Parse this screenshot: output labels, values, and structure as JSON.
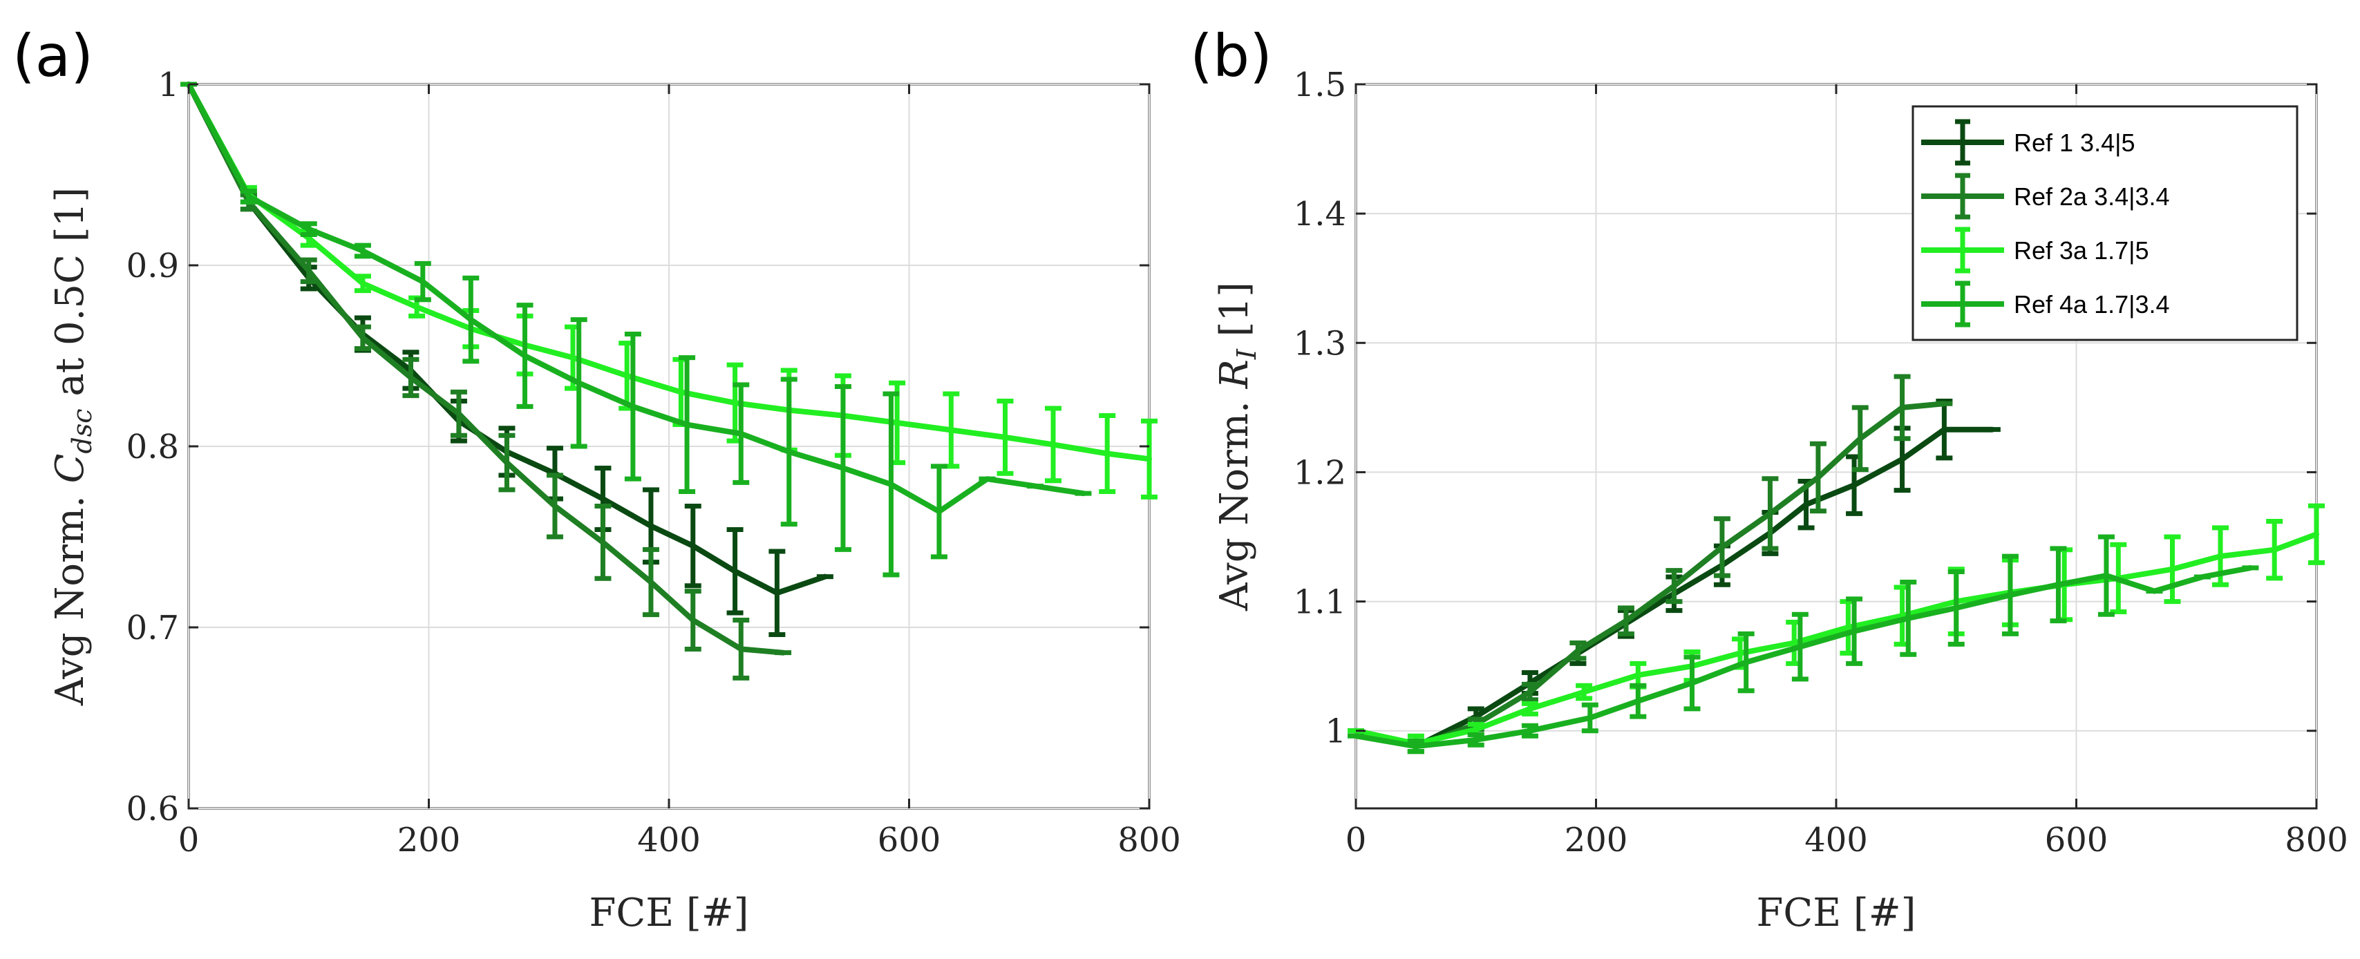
{
  "series_styles": [
    {
      "name": "Ref 1 3.4|5",
      "color": "#0a4a12"
    },
    {
      "name": "Ref 2a 3.4|3.4",
      "color": "#1f7f23"
    },
    {
      "name": "Ref 3a 1.7|5",
      "color": "#22ee22"
    },
    {
      "name": "Ref 4a 1.7|3.4",
      "color": "#19b020"
    }
  ],
  "chart_data": [
    {
      "type": "line",
      "panel_label": "(a)",
      "xlabel": "FCE [#]",
      "ylabel_prefix": "Avg Norm. ",
      "ylabel_var": "C",
      "ylabel_sub": "dsc",
      "ylabel_suffix": " at 0.5C [1]",
      "xlim": [
        0,
        800
      ],
      "ylim": [
        0.6,
        1.0
      ],
      "xticks": [
        0,
        200,
        400,
        600,
        800
      ],
      "yticks": [
        0.6,
        0.7,
        0.8,
        0.9,
        1.0
      ],
      "ytick_labels": [
        "0.6",
        "0.7",
        "0.8",
        "0.9",
        "1"
      ],
      "grid": true,
      "series": [
        {
          "name": "Ref 1 3.4|5",
          "x": [
            0,
            50,
            100,
            145,
            185,
            225,
            265,
            305,
            345,
            385,
            420,
            455,
            490,
            530
          ],
          "y": [
            1.0,
            0.935,
            0.893,
            0.862,
            0.842,
            0.814,
            0.797,
            0.785,
            0.771,
            0.756,
            0.745,
            0.731,
            0.719,
            0.728
          ],
          "err": [
            0,
            0.004,
            0.006,
            0.009,
            0.01,
            0.011,
            0.013,
            0.014,
            0.017,
            0.02,
            0.022,
            0.023,
            0.023,
            0
          ]
        },
        {
          "name": "Ref 2a 3.4|3.4",
          "x": [
            0,
            50,
            100,
            145,
            185,
            225,
            265,
            305,
            345,
            385,
            420,
            460,
            495
          ],
          "y": [
            1.0,
            0.935,
            0.897,
            0.86,
            0.838,
            0.818,
            0.791,
            0.767,
            0.747,
            0.725,
            0.704,
            0.688,
            0.686
          ],
          "err": [
            0,
            0.004,
            0.006,
            0.006,
            0.01,
            0.012,
            0.015,
            0.017,
            0.02,
            0.018,
            0.016,
            0.016,
            0
          ]
        },
        {
          "name": "Ref 3a 1.7|5",
          "x": [
            0,
            50,
            100,
            145,
            190,
            235,
            280,
            320,
            365,
            410,
            455,
            500,
            545,
            590,
            635,
            680,
            720,
            765,
            800
          ],
          "y": [
            1.0,
            0.939,
            0.915,
            0.89,
            0.877,
            0.865,
            0.856,
            0.849,
            0.839,
            0.83,
            0.824,
            0.82,
            0.817,
            0.813,
            0.809,
            0.805,
            0.801,
            0.796,
            0.793
          ],
          "err": [
            0,
            0.004,
            0.004,
            0.004,
            0.005,
            0.01,
            0.016,
            0.017,
            0.018,
            0.018,
            0.021,
            0.022,
            0.022,
            0.022,
            0.02,
            0.02,
            0.02,
            0.021,
            0.021
          ]
        },
        {
          "name": "Ref 4a 1.7|3.4",
          "x": [
            0,
            50,
            100,
            145,
            195,
            235,
            280,
            325,
            370,
            415,
            460,
            500,
            545,
            585,
            625,
            665,
            705,
            745
          ],
          "y": [
            1.0,
            0.938,
            0.92,
            0.908,
            0.891,
            0.87,
            0.85,
            0.835,
            0.822,
            0.812,
            0.807,
            0.797,
            0.788,
            0.779,
            0.764,
            0.782,
            0.778,
            0.774
          ],
          "err": [
            0,
            0.003,
            0.003,
            0.003,
            0.01,
            0.023,
            0.028,
            0.035,
            0.04,
            0.037,
            0.027,
            0.04,
            0.045,
            0.05,
            0.025,
            0,
            0,
            0
          ]
        }
      ]
    },
    {
      "type": "line",
      "panel_label": "(b)",
      "xlabel": "FCE [#]",
      "ylabel_prefix": "Avg Norm. ",
      "ylabel_var": "R",
      "ylabel_sub": "I",
      "ylabel_suffix": " [1]",
      "xlim": [
        0,
        800
      ],
      "ylim": [
        0.94,
        1.5
      ],
      "xticks": [
        0,
        200,
        400,
        600,
        800
      ],
      "yticks": [
        1.0,
        1.1,
        1.2,
        1.3,
        1.4,
        1.5
      ],
      "ytick_labels": [
        "1",
        "1.1",
        "1.2",
        "1.3",
        "1.4",
        "1.5"
      ],
      "grid": true,
      "legend": {
        "position": "top-right",
        "entries": [
          "Ref 1 3.4|5",
          "Ref 2a 3.4|3.4",
          "Ref 3a 1.7|5",
          "Ref 4a 1.7|3.4"
        ]
      },
      "series": [
        {
          "name": "Ref 1 3.4|5",
          "x": [
            0,
            50,
            100,
            145,
            185,
            225,
            265,
            305,
            345,
            375,
            415,
            455,
            490,
            530
          ],
          "y": [
            1.0,
            0.988,
            1.011,
            1.037,
            1.06,
            1.083,
            1.106,
            1.128,
            1.153,
            1.175,
            1.19,
            1.21,
            1.233,
            1.233
          ],
          "err": [
            0,
            0.004,
            0.006,
            0.008,
            0.008,
            0.01,
            0.013,
            0.015,
            0.016,
            0.018,
            0.022,
            0.024,
            0.022,
            0
          ]
        },
        {
          "name": "Ref 2a 3.4|3.4",
          "x": [
            0,
            50,
            100,
            145,
            185,
            225,
            265,
            305,
            345,
            385,
            420,
            455,
            490
          ],
          "y": [
            1.0,
            0.988,
            1.005,
            1.03,
            1.062,
            1.085,
            1.112,
            1.142,
            1.168,
            1.196,
            1.226,
            1.25,
            1.253
          ],
          "err": [
            0,
            0.004,
            0.004,
            0.006,
            0.006,
            0.01,
            0.012,
            0.022,
            0.027,
            0.026,
            0.024,
            0.024,
            0
          ]
        },
        {
          "name": "Ref 3a 1.7|5",
          "x": [
            0,
            50,
            100,
            145,
            190,
            235,
            280,
            320,
            365,
            410,
            455,
            500,
            545,
            590,
            635,
            680,
            720,
            765,
            800
          ],
          "y": [
            1.0,
            0.99,
            1.001,
            1.017,
            1.03,
            1.043,
            1.05,
            1.06,
            1.068,
            1.08,
            1.089,
            1.1,
            1.107,
            1.113,
            1.118,
            1.125,
            1.135,
            1.14,
            1.152
          ],
          "err": [
            0,
            0.006,
            0.004,
            0.004,
            0.005,
            0.009,
            0.011,
            0.011,
            0.016,
            0.02,
            0.022,
            0.025,
            0.025,
            0.027,
            0.026,
            0.025,
            0.022,
            0.022,
            0.022
          ]
        },
        {
          "name": "Ref 4a 1.7|3.4",
          "x": [
            0,
            50,
            100,
            145,
            195,
            235,
            280,
            325,
            370,
            415,
            460,
            500,
            545,
            585,
            625,
            665,
            705,
            745
          ],
          "y": [
            0.996,
            0.988,
            0.993,
            1.0,
            1.01,
            1.023,
            1.037,
            1.053,
            1.065,
            1.077,
            1.087,
            1.095,
            1.105,
            1.113,
            1.12,
            1.108,
            1.119,
            1.126
          ],
          "err": [
            0,
            0.004,
            0.004,
            0.004,
            0.01,
            0.012,
            0.02,
            0.022,
            0.025,
            0.025,
            0.028,
            0.028,
            0.03,
            0.028,
            0.03,
            0,
            0,
            0
          ]
        }
      ]
    }
  ]
}
